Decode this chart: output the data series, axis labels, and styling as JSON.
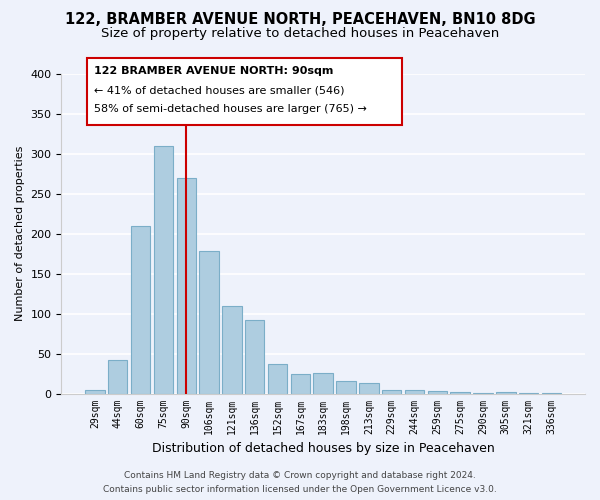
{
  "title": "122, BRAMBER AVENUE NORTH, PEACEHAVEN, BN10 8DG",
  "subtitle": "Size of property relative to detached houses in Peacehaven",
  "xlabel": "Distribution of detached houses by size in Peacehaven",
  "ylabel": "Number of detached properties",
  "bar_labels": [
    "29sqm",
    "44sqm",
    "60sqm",
    "75sqm",
    "90sqm",
    "106sqm",
    "121sqm",
    "136sqm",
    "152sqm",
    "167sqm",
    "183sqm",
    "198sqm",
    "213sqm",
    "229sqm",
    "244sqm",
    "259sqm",
    "275sqm",
    "290sqm",
    "305sqm",
    "321sqm",
    "336sqm"
  ],
  "bar_values": [
    5,
    42,
    210,
    310,
    270,
    178,
    110,
    92,
    37,
    24,
    26,
    16,
    13,
    5,
    5,
    3,
    2,
    1,
    2,
    1,
    1
  ],
  "bar_color": "#aecde0",
  "bar_edge_color": "#7baec8",
  "vline_x_index": 4,
  "vline_color": "#cc0000",
  "annotation_title": "122 BRAMBER AVENUE NORTH: 90sqm",
  "annotation_line1": "← 41% of detached houses are smaller (546)",
  "annotation_line2": "58% of semi-detached houses are larger (765) →",
  "annotation_box_color": "#ffffff",
  "annotation_border_color": "#cc0000",
  "ylim": [
    0,
    400
  ],
  "yticks": [
    0,
    50,
    100,
    150,
    200,
    250,
    300,
    350,
    400
  ],
  "footer1": "Contains HM Land Registry data © Crown copyright and database right 2024.",
  "footer2": "Contains public sector information licensed under the Open Government Licence v3.0.",
  "bg_color": "#eef2fb",
  "grid_color": "#ffffff",
  "title_fontsize": 10.5,
  "subtitle_fontsize": 9.5
}
